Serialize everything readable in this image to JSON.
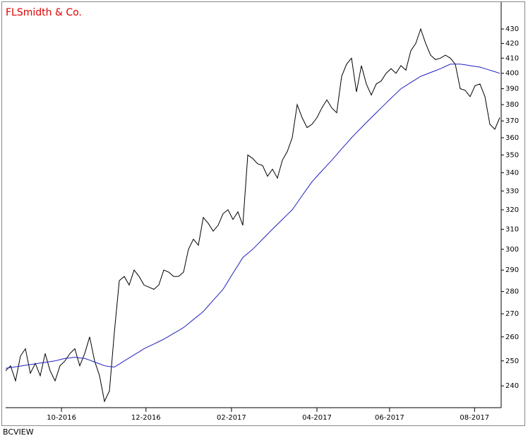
{
  "chart_data": {
    "type": "line",
    "title": "FLSmidth & Co.",
    "source": "BCVIEW",
    "x": [
      0,
      1,
      2,
      3,
      4,
      5,
      6,
      7,
      8,
      9,
      10,
      11,
      12,
      13,
      14,
      15,
      16,
      17,
      18,
      19,
      20,
      21,
      22,
      23,
      24,
      25,
      26,
      27,
      28,
      29,
      30,
      31,
      32,
      33,
      34,
      35,
      36,
      37,
      38,
      39,
      40,
      41,
      42,
      43,
      44,
      45,
      46,
      47,
      48,
      49,
      50,
      51,
      52,
      53,
      54,
      55,
      56,
      57,
      58,
      59,
      60,
      61,
      62,
      63,
      64,
      65,
      66,
      67,
      68,
      69,
      70,
      71,
      72,
      73,
      74,
      75,
      76,
      77,
      78,
      79,
      80,
      81,
      82,
      83,
      84,
      85,
      86,
      87,
      88,
      89,
      90,
      91,
      92,
      93,
      94,
      95,
      96,
      97,
      98,
      99,
      100
    ],
    "series": [
      {
        "color": "#000000",
        "values": [
          246,
          248,
          242,
          252,
          255,
          245,
          249,
          244,
          253,
          246,
          242,
          248,
          250,
          253,
          255,
          248,
          253,
          260,
          250,
          244,
          234,
          238,
          262,
          285,
          287,
          283,
          290,
          287,
          283,
          282,
          281,
          283,
          290,
          289,
          287,
          287,
          289,
          300,
          305,
          302,
          316,
          313,
          309,
          312,
          318,
          320,
          315,
          319,
          312,
          350,
          348,
          345,
          344,
          338,
          342,
          337,
          347,
          352,
          360,
          380,
          372,
          366,
          368,
          372,
          378,
          383,
          378,
          375,
          398,
          406,
          410,
          388,
          405,
          393,
          386,
          393,
          395,
          400,
          403,
          400,
          405,
          402,
          415,
          420,
          430,
          420,
          412,
          409,
          410,
          412,
          410,
          406,
          390,
          389,
          385,
          392,
          393,
          385,
          368,
          365,
          372
        ]
      },
      {
        "color": "#2020c0",
        "values": [
          247,
          247.3,
          247.6,
          247.9,
          248.2,
          248.5,
          248.8,
          249.1,
          249.4,
          249.7,
          250,
          250.5,
          251,
          251.2,
          251.5,
          251.2,
          251,
          250.3,
          249.5,
          248.8,
          248,
          247.7,
          247.5,
          248.7,
          250,
          251.2,
          252.5,
          253.7,
          255,
          256,
          257,
          258,
          259,
          260.2,
          261.5,
          262.7,
          264,
          265.7,
          267.5,
          269.2,
          271,
          273.5,
          276,
          278.5,
          281,
          284.7,
          288.5,
          292.2,
          296,
          298,
          300,
          302.5,
          305,
          307.5,
          310,
          312.5,
          315,
          317.5,
          320,
          323.7,
          327.5,
          331.2,
          335,
          338,
          341,
          344,
          347,
          350.2,
          353.5,
          356.7,
          360,
          363,
          366,
          369,
          372,
          375,
          378,
          381,
          384,
          387,
          390,
          392,
          394,
          396,
          398,
          399.2,
          400.5,
          401.7,
          403,
          404.5,
          406,
          406,
          406,
          405.5,
          405,
          404.5,
          404,
          403,
          402,
          401,
          400
        ]
      }
    ],
    "xlim": [
      0,
      100
    ],
    "xticks": [
      {
        "value": 11.3,
        "label": "10-2016"
      },
      {
        "value": 28.4,
        "label": "12-2016"
      },
      {
        "value": 45.7,
        "label": "02-2017"
      },
      {
        "value": 63,
        "label": "04-2017"
      },
      {
        "value": 77.7,
        "label": "06-2017"
      },
      {
        "value": 94.9,
        "label": "08-2017"
      }
    ],
    "ylim": [
      231.6,
      435.5
    ],
    "log_y": true,
    "yticks": [
      240,
      250,
      260,
      270,
      280,
      290,
      300,
      310,
      320,
      330,
      340,
      350,
      360,
      370,
      380,
      390,
      400,
      410,
      420,
      430
    ]
  }
}
